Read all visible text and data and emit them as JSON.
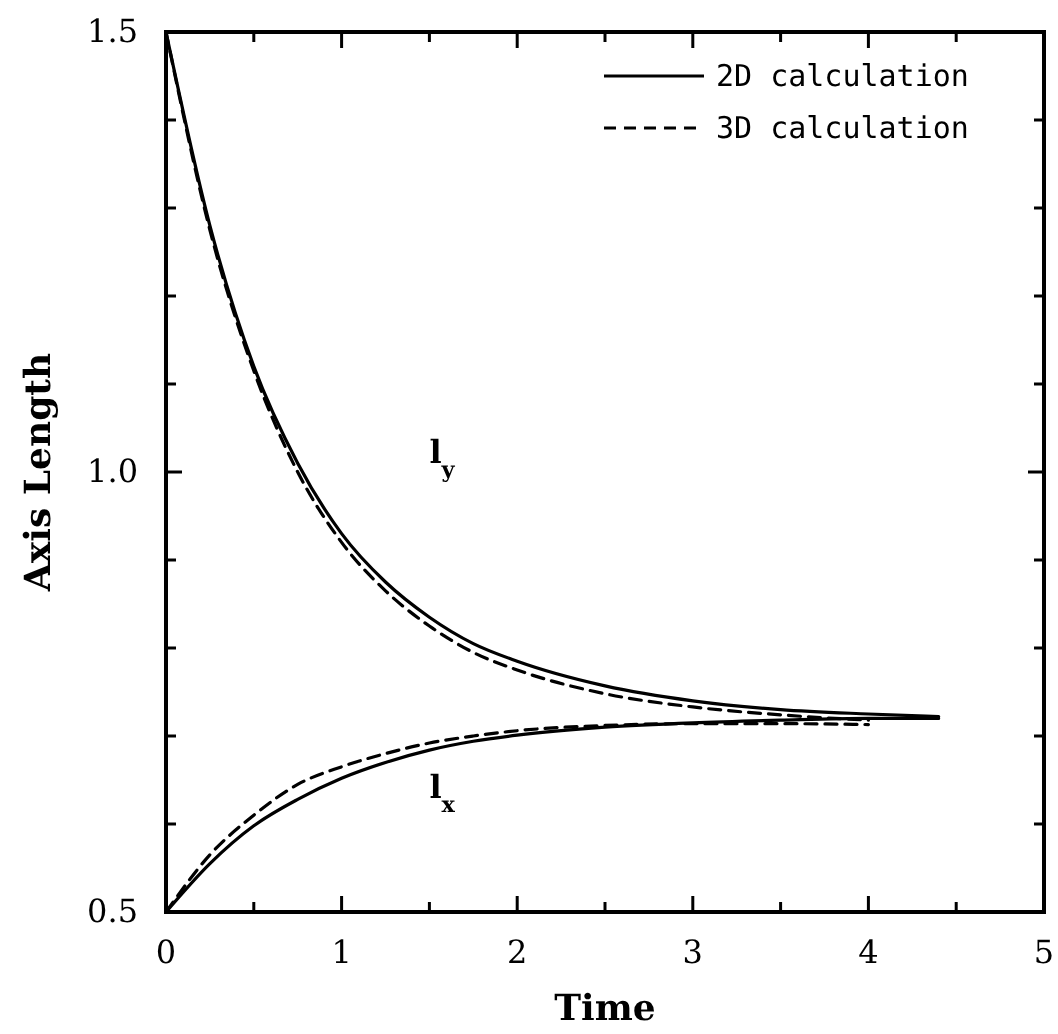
{
  "chart_data": {
    "type": "line",
    "xlabel": "Time",
    "ylabel": "Axis Length",
    "xlim": [
      0,
      5
    ],
    "ylim": [
      0.5,
      1.5
    ],
    "xticks": [
      0,
      {
        "value": 0.5,
        "label": null
      },
      1,
      {
        "value": 1.5,
        "label": null
      },
      2,
      {
        "value": 2.5,
        "label": null
      },
      3,
      {
        "value": 3.5,
        "label": null
      },
      4,
      {
        "value": 4.5,
        "label": null
      },
      5
    ],
    "yticks": [
      {
        "value": 0.5,
        "label": "0.5"
      },
      {
        "value": 0.6,
        "label": null
      },
      {
        "value": 0.7,
        "label": null
      },
      {
        "value": 0.8,
        "label": null
      },
      {
        "value": 0.9,
        "label": null
      },
      {
        "value": 1.0,
        "label": "1.0"
      },
      {
        "value": 1.1,
        "label": null
      },
      {
        "value": 1.2,
        "label": null
      },
      {
        "value": 1.3,
        "label": null
      },
      {
        "value": 1.4,
        "label": null
      },
      {
        "value": 1.5,
        "label": "1.5"
      }
    ],
    "grid": false,
    "legend": "top right",
    "marker": "none",
    "annotations": [
      "l$_{y}$",
      "l$_{x}$"
    ],
    "series": [
      {
        "name": "2D calculation",
        "color": "#000000",
        "line_style": "solid",
        "x": [
          0,
          0.25,
          0.5,
          0.75,
          1,
          1.25,
          1.5,
          1.75,
          2,
          2.5,
          3,
          3.5,
          4,
          4.4
        ],
        "values": [
          1.5,
          1.28,
          1.12,
          1.01,
          0.93,
          0.875,
          0.835,
          0.805,
          0.785,
          0.757,
          0.74,
          0.73,
          0.725,
          0.722
        ]
      },
      {
        "name": "3D calculation",
        "color": "#000000",
        "line_style": "dashed",
        "x": [
          0,
          0.25,
          0.5,
          0.75,
          1,
          1.25,
          1.5,
          1.75,
          2,
          2.5,
          3,
          3.5,
          4
        ],
        "values": [
          1.5,
          1.275,
          1.115,
          1.0,
          0.92,
          0.865,
          0.825,
          0.795,
          0.775,
          0.748,
          0.733,
          0.724,
          0.718
        ]
      },
      {
        "color": "#000000",
        "line_style": "solid",
        "x": [
          0,
          0.25,
          0.5,
          0.75,
          1,
          1.25,
          1.5,
          1.75,
          2,
          2.5,
          3,
          3.5,
          4,
          4.4
        ],
        "values": [
          0.5,
          0.555,
          0.598,
          0.628,
          0.652,
          0.67,
          0.684,
          0.694,
          0.701,
          0.71,
          0.715,
          0.718,
          0.72,
          0.72
        ]
      },
      {
        "color": "#000000",
        "line_style": "dashed",
        "x": [
          0,
          0.25,
          0.5,
          0.75,
          1,
          1.25,
          1.5,
          1.75,
          2,
          2.5,
          3,
          3.5,
          4
        ],
        "values": [
          0.5,
          0.565,
          0.61,
          0.645,
          0.665,
          0.68,
          0.692,
          0.7,
          0.706,
          0.712,
          0.714,
          0.714,
          0.713
        ]
      }
    ]
  }
}
